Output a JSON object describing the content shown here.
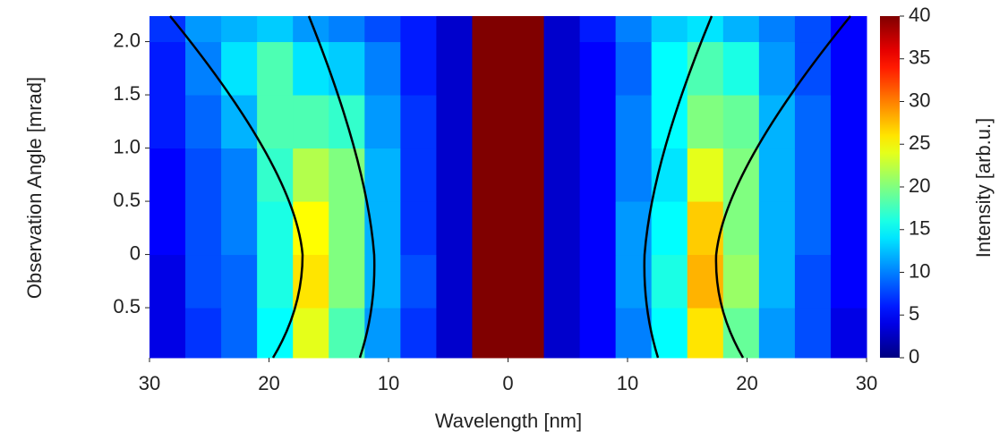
{
  "chart_data": {
    "type": "heatmap",
    "x_label": "Wavelength [nm]",
    "y_label": "Observation Angle [mrad]",
    "colorbar_label": "Intensity [arb.u.]",
    "colormap": "jet",
    "xlim": [
      -30,
      30
    ],
    "ylim": [
      -0.97,
      2.24
    ],
    "clim": [
      0,
      40
    ],
    "xticks": [
      {
        "value": -30,
        "label": "30"
      },
      {
        "value": -20,
        "label": "20"
      },
      {
        "value": -10,
        "label": "10"
      },
      0,
      10,
      20,
      30
    ],
    "yticks": [
      {
        "value": -0.5,
        "label": "0.5"
      },
      0,
      0.5,
      {
        "value": 1,
        "label": "1.0"
      },
      1.5,
      {
        "value": 2,
        "label": "2.0"
      }
    ],
    "cticks": [
      0,
      5,
      10,
      15,
      20,
      25,
      30,
      35,
      40
    ],
    "x_edges": [
      -30,
      -27,
      -24,
      -21,
      -18,
      -15,
      -12,
      -9,
      -6,
      -3,
      0,
      3,
      6,
      9,
      12,
      15,
      18,
      21,
      24,
      27,
      30
    ],
    "y_edges": [
      -0.97,
      -0.5,
      0,
      0.5,
      1,
      1.5,
      2,
      2.24
    ],
    "z": [
      [
        4,
        7,
        9,
        15,
        24,
        18,
        11,
        7,
        3,
        40,
        40,
        3,
        5,
        10,
        15,
        26,
        19,
        11,
        8,
        4
      ],
      [
        4,
        8,
        9,
        16,
        26,
        20,
        12,
        8,
        3,
        40,
        40,
        3,
        5,
        11,
        16,
        28,
        21,
        12,
        8,
        5
      ],
      [
        5,
        8,
        10,
        16,
        25,
        20,
        12,
        7,
        3,
        40,
        40,
        3,
        5,
        11,
        15,
        27,
        20,
        12,
        9,
        5
      ],
      [
        5,
        8,
        10,
        17,
        22,
        20,
        12,
        7,
        3,
        40,
        40,
        3,
        5,
        10,
        14,
        24,
        20,
        12,
        9,
        5
      ],
      [
        6,
        9,
        12,
        18,
        18,
        17,
        11,
        7,
        3,
        40,
        40,
        3,
        5,
        10,
        15,
        20,
        19,
        12,
        9,
        5
      ],
      [
        6,
        10,
        14,
        18,
        14,
        13,
        10,
        6,
        3,
        40,
        40,
        3,
        5,
        9,
        15,
        18,
        16,
        11,
        8,
        5
      ],
      [
        7,
        11,
        12,
        13,
        11,
        10,
        8,
        6,
        3,
        40,
        40,
        3,
        6,
        10,
        13,
        14,
        12,
        10,
        8,
        5
      ]
    ]
  }
}
